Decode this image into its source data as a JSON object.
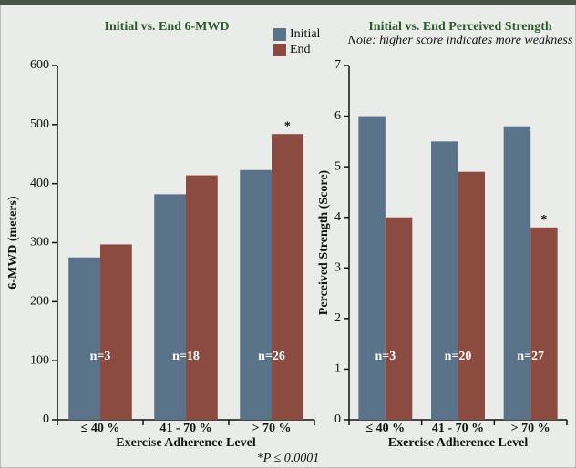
{
  "chart_data": [
    {
      "type": "bar",
      "title": "Initial vs. End 6-MWD",
      "y_label": "6-MWD (meters)",
      "x_label": "Exercise Adherence Level",
      "categories": [
        "≤ 40 %",
        "41 - 70 %",
        "> 70 %"
      ],
      "sample_sizes": [
        "n=3",
        "n=18",
        "n=26"
      ],
      "series": [
        {
          "name": "Initial",
          "color": "#5b7389",
          "values": [
            275,
            382,
            423
          ]
        },
        {
          "name": "End",
          "color": "#8b4b40",
          "values": [
            297,
            414,
            484
          ],
          "markers": [
            null,
            null,
            "*"
          ]
        }
      ],
      "ylim": [
        0,
        600
      ],
      "yticks": [
        0,
        100,
        200,
        300,
        400,
        500,
        600
      ]
    },
    {
      "type": "bar",
      "title": "Initial vs. End Perceived Strength",
      "subtitle": "Note: higher score indicates more weakness",
      "y_label": "Perceived Strength (Score)",
      "x_label": "Exercise Adherence Level",
      "categories": [
        "≤ 40 %",
        "41 - 70 %",
        "> 70 %"
      ],
      "sample_sizes": [
        "n=3",
        "n=20",
        "n=27"
      ],
      "series": [
        {
          "name": "Initial",
          "color": "#5b7389",
          "values": [
            6,
            5.5,
            5.8
          ]
        },
        {
          "name": "End",
          "color": "#8b4b40",
          "values": [
            4,
            4.9,
            3.8
          ],
          "markers": [
            null,
            null,
            "*"
          ]
        }
      ],
      "ylim": [
        0,
        7
      ],
      "yticks": [
        0,
        1,
        2,
        3,
        4,
        5,
        6,
        7
      ]
    }
  ],
  "footnote": "*P ≤ 0.0001"
}
